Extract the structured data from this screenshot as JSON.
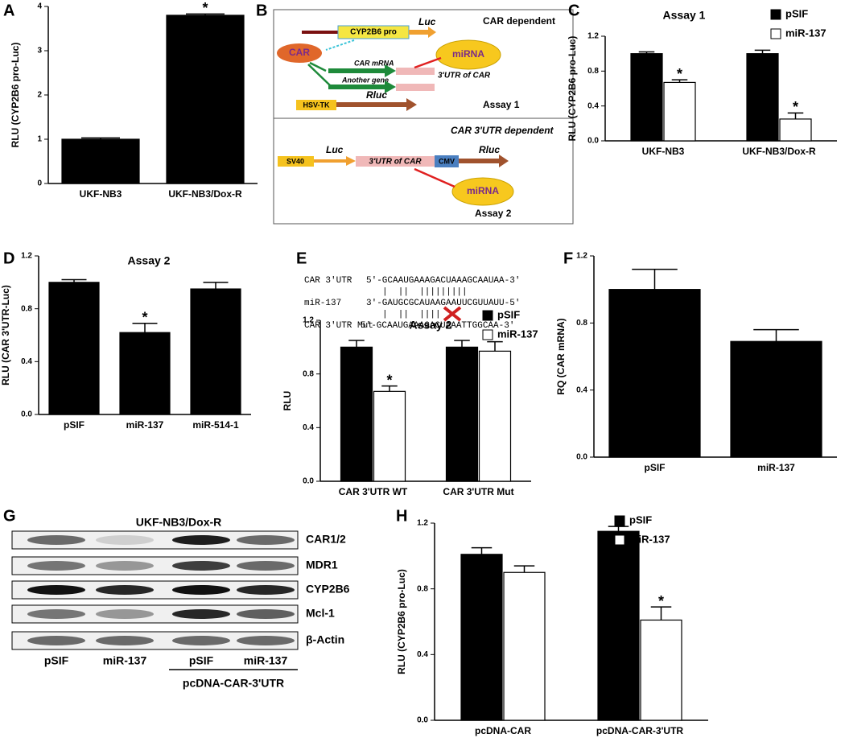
{
  "chart_data": [
    {
      "type": "bar",
      "label": "A",
      "ylabel": "RLU (CYP2B6 pro-Luc)",
      "categories": [
        "UKF-NB3",
        "UKF-NB3/Dox-R"
      ],
      "values": [
        1.0,
        3.8
      ],
      "errors": [
        0.03,
        0.03
      ],
      "annotations": [
        null,
        "*"
      ],
      "color": "#000000",
      "ylim": [
        0,
        4
      ],
      "yticks": [
        0,
        1,
        2,
        3,
        4
      ]
    },
    {
      "type": "bar",
      "label": "C",
      "title": "Assay 1",
      "ylabel": "RLU (CYP2B6 pro-Luc)",
      "categories": [
        "UKF-NB3",
        "UKF-NB3/Dox-R"
      ],
      "series": [
        {
          "name": "pSIF",
          "color": "#000000",
          "values": [
            1.0,
            1.0
          ],
          "errors": [
            0.02,
            0.04
          ]
        },
        {
          "name": "miR-137",
          "color": "#ffffff",
          "values": [
            0.67,
            0.25
          ],
          "errors": [
            0.03,
            0.07
          ],
          "annotations": [
            "*",
            "*"
          ]
        }
      ],
      "ylim": [
        0,
        1.2
      ],
      "yticks": [
        {
          "value": 0,
          "label": "0.0"
        },
        0.4,
        0.8,
        1.2
      ],
      "legend": "upper right"
    },
    {
      "type": "bar",
      "label": "D",
      "title": "Assay 2",
      "ylabel": "RLU (CAR 3'UTR-Luc)",
      "categories": [
        "pSIF",
        "miR-137",
        "miR-514-1"
      ],
      "values": [
        1.0,
        0.62,
        0.95
      ],
      "errors": [
        0.02,
        0.07,
        0.05
      ],
      "annotations": [
        null,
        "*",
        null
      ],
      "color": "#000000",
      "ylim": [
        0,
        1.2
      ],
      "yticks": [
        {
          "value": 0,
          "label": "0.0"
        },
        0.4,
        0.8,
        1.2
      ]
    },
    {
      "type": "bar",
      "label": "E",
      "title": "Assay 2",
      "ylabel": "RLU",
      "categories": [
        "CAR 3'UTR WT",
        "CAR 3'UTR Mut"
      ],
      "series": [
        {
          "name": "pSIF",
          "color": "#000000",
          "values": [
            1.0,
            1.0
          ],
          "errors": [
            0.05,
            0.05
          ]
        },
        {
          "name": "miR-137",
          "color": "#ffffff",
          "values": [
            0.67,
            0.97
          ],
          "errors": [
            0.04,
            0.07
          ],
          "annotations": [
            "*",
            null
          ]
        }
      ],
      "ylim": [
        0,
        1.2
      ],
      "yticks": [
        {
          "value": 0,
          "label": "0.0"
        },
        0.4,
        0.8,
        1.2
      ],
      "legend": "upper right"
    },
    {
      "type": "bar",
      "label": "F",
      "ylabel": "RQ (CAR mRNA)",
      "categories": [
        "pSIF",
        "miR-137"
      ],
      "values": [
        1.0,
        0.69
      ],
      "errors": [
        0.12,
        0.07
      ],
      "color": "#000000",
      "ylim": [
        0,
        1.2
      ],
      "yticks": [
        {
          "value": 0,
          "label": "0.0"
        },
        0.4,
        0.8,
        1.2
      ]
    },
    {
      "type": "bar",
      "label": "H",
      "ylabel": "RLU (CYP2B6 pro-Luc)",
      "categories": [
        "pcDNA-CAR",
        "pcDNA-CAR-3'UTR"
      ],
      "series": [
        {
          "name": "pSIF",
          "color": "#000000",
          "values": [
            1.01,
            1.15
          ],
          "errors": [
            0.04,
            0.03
          ]
        },
        {
          "name": "miR-137",
          "color": "#ffffff",
          "values": [
            0.9,
            0.61
          ],
          "errors": [
            0.04,
            0.08
          ],
          "annotations": [
            null,
            "*"
          ]
        }
      ],
      "ylim": [
        0,
        1.2
      ],
      "yticks": [
        {
          "value": 0,
          "label": "0.0"
        },
        0.4,
        0.8,
        1.2
      ],
      "legend": "upper right"
    }
  ],
  "diagram_b": {
    "label": "B",
    "assay1_title": "CAR dependent",
    "promoter": "CYP2B6 pro",
    "luc": "Luc",
    "car": "CAR",
    "mirna": "miRNA",
    "car_mrna": "CAR mRNA",
    "utr": "3'UTR of CAR",
    "another_gene": "Another gene",
    "hsv_tk": "HSV-TK",
    "rluc": "Rluc",
    "assay1": "Assay 1",
    "assay2_title": "CAR 3'UTR dependent",
    "sv40": "SV40",
    "luc2": "Luc",
    "utr2": "3'UTR of CAR",
    "cmv": "CMV",
    "rluc2": "Rluc",
    "mirna2": "miRNA",
    "assay2": "Assay 2"
  },
  "alignment_e": {
    "rows": [
      {
        "name": "CAR 3'UTR",
        "sequence": "5'-GCAAUGAAAGACUAAAGCAAUAA-3'"
      },
      {
        "pairs": "|  ||  |||||||||"
      },
      {
        "name": "miR-137",
        "sequence": "3'-GAUGCGCAUAAGAAUUCGUUAUU-5'"
      },
      {
        "pairs": "|  ||  ||||"
      },
      {
        "name": "CAR 3'UTR Mut",
        "sequence": "5'-GCAAUGAAAGACUAAATTGGCAA-3'"
      }
    ]
  },
  "blot_g": {
    "label": "G",
    "title": "UKF-NB3/Dox-R",
    "proteins": [
      "CAR1/2",
      "MDR1",
      "CYP2B6",
      "Mcl-1",
      "β-Actin"
    ],
    "lanes": [
      "pSIF",
      "miR-137",
      "pSIF",
      "miR-137"
    ],
    "group": "pcDNA-CAR-3'UTR"
  }
}
